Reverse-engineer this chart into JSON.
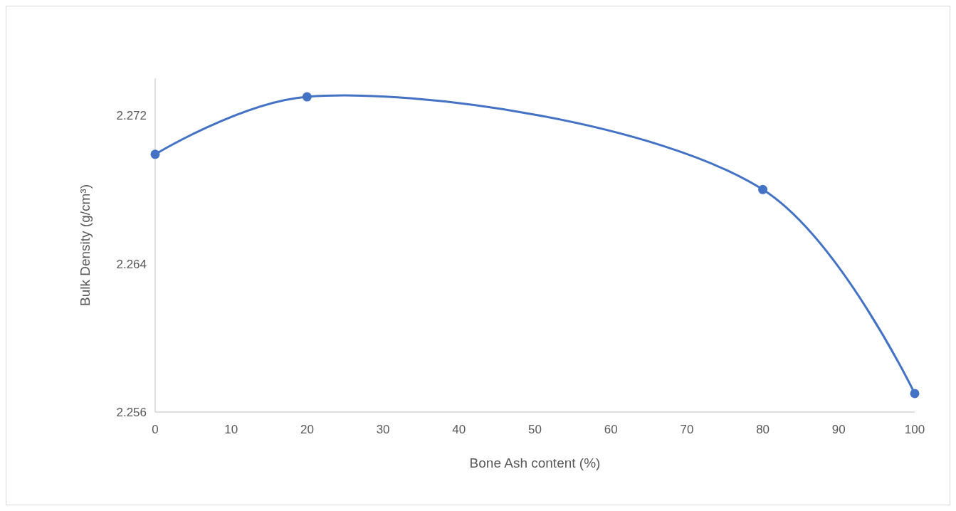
{
  "chart_data": {
    "type": "line",
    "xlabel": "Bone Ash content (%)",
    "ylabel": "Bulk Density (g/cm³)",
    "x": [
      0,
      20,
      80,
      100
    ],
    "series": [
      {
        "color": "#4472c4",
        "values": [
          2.2699,
          2.273,
          2.268,
          2.257
        ]
      }
    ],
    "xlim": [
      0,
      100
    ],
    "xticks": [
      0,
      10,
      20,
      30,
      40,
      50,
      60,
      70,
      80,
      90,
      100
    ],
    "ylim": [
      2.256,
      2.274
    ],
    "yticks": [
      2.256,
      2.264,
      2.272
    ],
    "grid": false,
    "marker": "circle",
    "line_style": "solid"
  }
}
